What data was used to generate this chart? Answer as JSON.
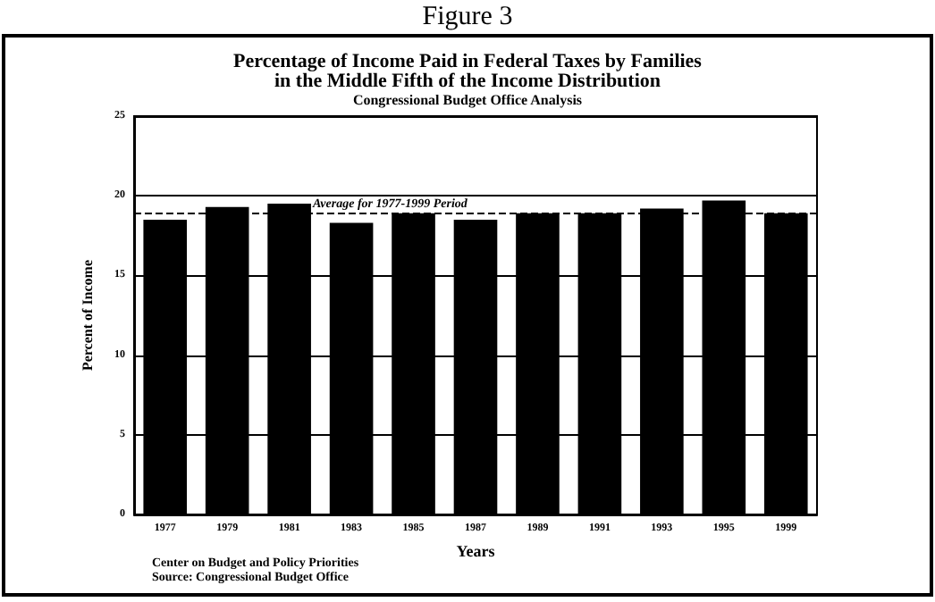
{
  "chart_data": {
    "type": "bar",
    "title": "Percentage of Income Paid in Federal Taxes by Families\nin the Middle Fifth of the Income Distribution",
    "subtitle": "Congressional Budget Office Analysis",
    "xlabel": "Years",
    "ylabel": "Percent of Income",
    "categories": [
      "1977",
      "1979",
      "1981",
      "1983",
      "1985",
      "1987",
      "1989",
      "1991",
      "1993",
      "1995",
      "1999"
    ],
    "values": [
      18.5,
      19.3,
      19.5,
      18.3,
      18.9,
      18.5,
      18.9,
      18.9,
      19.2,
      19.7,
      18.9
    ],
    "color": "#000000",
    "ylim": [
      0,
      25
    ],
    "yticks": [
      0,
      5,
      10,
      15,
      20,
      25
    ],
    "grid": "y",
    "ref_lines": [
      {
        "axis": "y",
        "value": 18.9,
        "label": "Average for 1977-1999 Period",
        "line_style": "dashed",
        "color": "#000000"
      }
    ],
    "annotations": [
      "Figure 3",
      "Center on Budget and Policy Priorities",
      "Source: Congressional Budget Office"
    ]
  }
}
